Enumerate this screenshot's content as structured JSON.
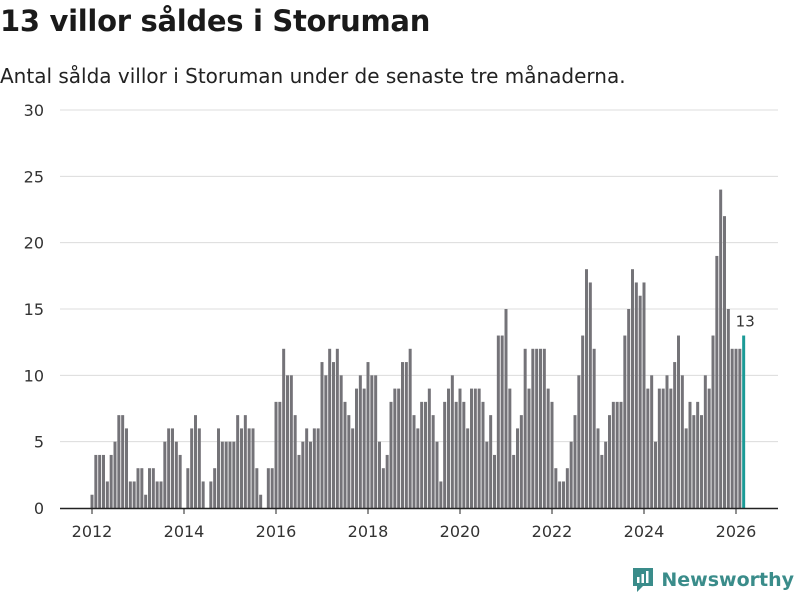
{
  "header": {
    "title": "13 villor såldes i Storuman",
    "subtitle": "Antal sålda villor i Storuman under de senaste tre månaderna."
  },
  "brand": {
    "name": "Newsworthy"
  },
  "colors": {
    "bar": "#747378",
    "highlight": "#1b9a96",
    "grid": "#dcdcdc",
    "brand": "#3a8c8a"
  },
  "chart_data": {
    "type": "bar",
    "title": "13 villor såldes i Storuman",
    "xlabel": "",
    "ylabel": "",
    "ylim": [
      0,
      30
    ],
    "yticks": [
      0,
      5,
      10,
      15,
      20,
      25,
      30
    ],
    "xticks": [
      2012,
      2014,
      2016,
      2018,
      2020,
      2022,
      2024,
      2026
    ],
    "start": {
      "year": 2012,
      "month": 0
    },
    "series_name": "Antal sålda villor",
    "values": [
      1,
      4,
      4,
      4,
      2,
      4,
      5,
      7,
      7,
      6,
      2,
      2,
      3,
      3,
      1,
      3,
      3,
      2,
      2,
      5,
      6,
      6,
      5,
      4,
      0,
      3,
      6,
      7,
      6,
      2,
      0,
      2,
      3,
      6,
      5,
      5,
      5,
      5,
      7,
      6,
      7,
      6,
      6,
      3,
      1,
      0,
      3,
      3,
      8,
      8,
      12,
      10,
      10,
      7,
      4,
      5,
      6,
      5,
      6,
      6,
      11,
      10,
      12,
      11,
      12,
      10,
      8,
      7,
      6,
      9,
      10,
      9,
      11,
      10,
      10,
      5,
      3,
      4,
      8,
      9,
      9,
      11,
      11,
      12,
      7,
      6,
      8,
      8,
      9,
      7,
      5,
      2,
      8,
      9,
      10,
      8,
      9,
      8,
      6,
      9,
      9,
      9,
      8,
      5,
      7,
      4,
      13,
      13,
      15,
      9,
      4,
      6,
      7,
      12,
      9,
      12,
      12,
      12,
      12,
      9,
      8,
      3,
      2,
      2,
      3,
      5,
      7,
      10,
      13,
      18,
      17,
      12,
      6,
      4,
      5,
      7,
      8,
      8,
      8,
      13,
      15,
      18,
      17,
      16,
      17,
      9,
      10,
      5,
      9,
      9,
      10,
      9,
      11,
      13,
      10,
      6,
      8,
      7,
      8,
      7,
      10,
      9,
      13,
      19,
      24,
      22,
      15,
      12,
      12,
      12,
      13
    ],
    "highlight_last": true,
    "last_label": "13"
  }
}
